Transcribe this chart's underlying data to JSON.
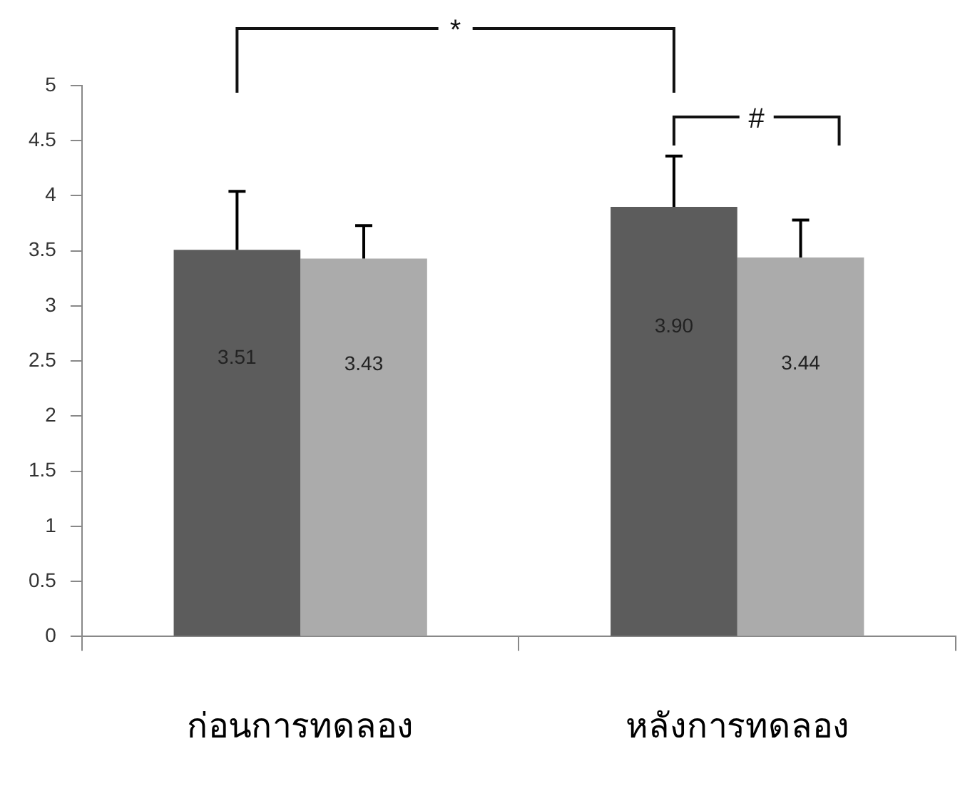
{
  "chart_data": {
    "type": "bar",
    "categories": [
      "ก่อนการทดลอง",
      "หลังการทดลอง"
    ],
    "series": [
      {
        "color": "#5c5c5c",
        "values": [
          3.51,
          3.9
        ],
        "value_labels": [
          "3.51",
          "3.90"
        ],
        "errors": [
          0.53,
          0.46
        ]
      },
      {
        "color": "#ababab",
        "values": [
          3.43,
          3.44
        ],
        "value_labels": [
          "3.43",
          "3.44"
        ],
        "errors": [
          0.3,
          0.34
        ]
      }
    ],
    "ylim": [
      0,
      5
    ],
    "yticks": [
      0,
      0.5,
      1,
      1.5,
      2,
      2.5,
      3,
      3.5,
      4,
      4.5,
      5
    ],
    "grid": false,
    "legend": false,
    "annotations": [
      "*",
      "#"
    ]
  }
}
